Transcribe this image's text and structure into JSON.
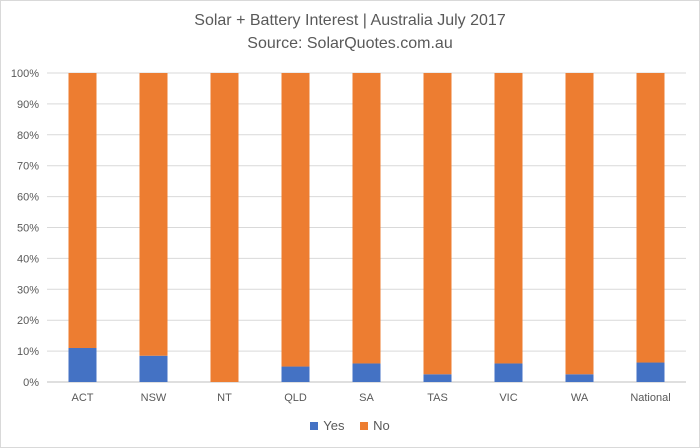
{
  "chart_data": {
    "type": "bar",
    "stacked": true,
    "title": "Solar + Battery Interest | Australia July 2017",
    "subtitle": "Source: SolarQuotes.com.au",
    "categories": [
      "ACT",
      "NSW",
      "NT",
      "QLD",
      "SA",
      "TAS",
      "VIC",
      "WA",
      "National"
    ],
    "series": [
      {
        "name": "Yes",
        "color": "#4472c4",
        "values": [
          11,
          8.5,
          0,
          5,
          6,
          2.5,
          6,
          2.5,
          6.3
        ]
      },
      {
        "name": "No",
        "color": "#ed7d31",
        "values": [
          89,
          91.5,
          100,
          95,
          94,
          97.5,
          94,
          97.5,
          93.7
        ]
      }
    ],
    "yticks": [
      "0%",
      "10%",
      "20%",
      "30%",
      "40%",
      "50%",
      "60%",
      "70%",
      "80%",
      "90%",
      "100%"
    ],
    "ylim": [
      0,
      100
    ],
    "grid": true,
    "legend": "bottom"
  }
}
